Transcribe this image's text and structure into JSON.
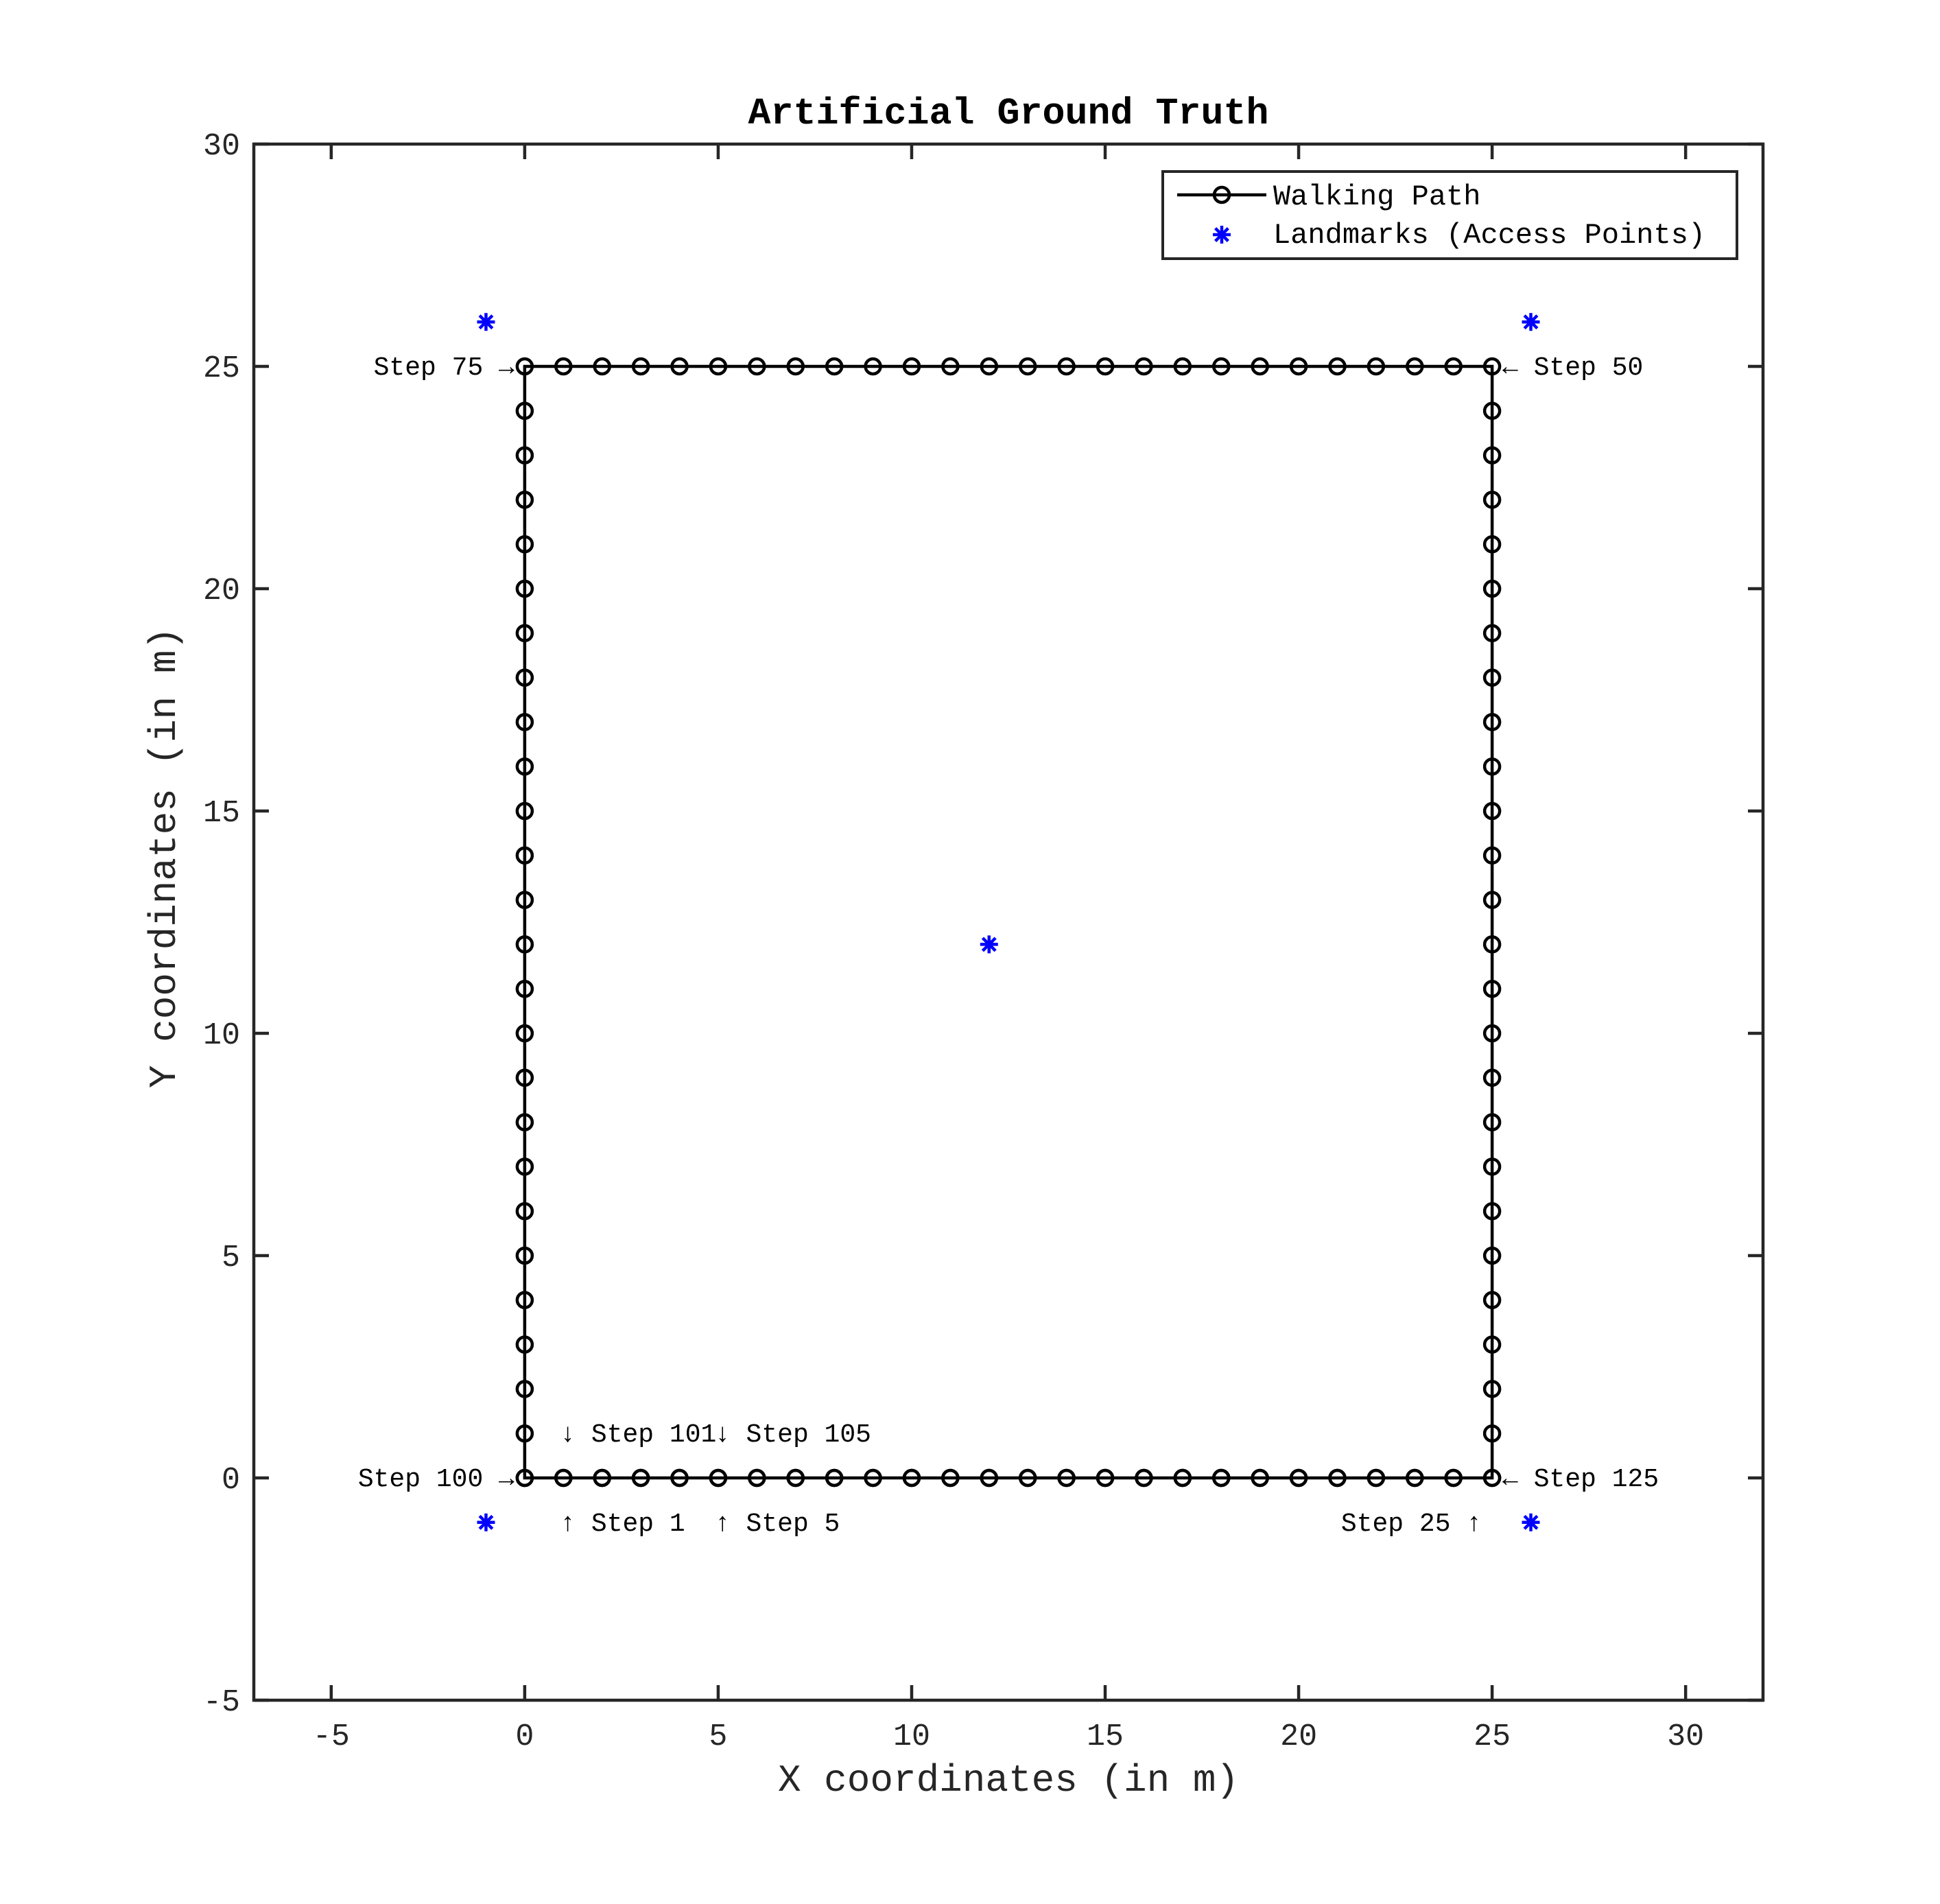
{
  "chart_data": {
    "type": "scatter",
    "title": "Artificial Ground Truth",
    "xlabel": "X coordinates (in m)",
    "ylabel": "Y coordinates (in m)",
    "xlim": [
      -7,
      32
    ],
    "ylim": [
      -5,
      30
    ],
    "xticks": [
      -5,
      0,
      5,
      10,
      15,
      20,
      25,
      30
    ],
    "yticks": [
      -5,
      0,
      5,
      10,
      15,
      20,
      25,
      30
    ],
    "xtick_labels": [
      "-5",
      "0",
      "5",
      "10",
      "15",
      "20",
      "25",
      "30"
    ],
    "ytick_labels": [
      "-5",
      "0",
      "5",
      "10",
      "15",
      "20",
      "25",
      "30"
    ],
    "grid": false,
    "legend_position": "top-right",
    "series": [
      {
        "name": "Walking Path",
        "style": "line-with-circle-markers",
        "color": "#000000",
        "x": [
          0,
          1,
          2,
          3,
          4,
          5,
          6,
          7,
          8,
          9,
          10,
          11,
          12,
          13,
          14,
          15,
          16,
          17,
          18,
          19,
          20,
          21,
          22,
          23,
          24,
          25,
          25,
          25,
          25,
          25,
          25,
          25,
          25,
          25,
          25,
          25,
          25,
          25,
          25,
          25,
          25,
          25,
          25,
          25,
          25,
          25,
          25,
          25,
          25,
          25,
          25,
          24,
          23,
          22,
          21,
          20,
          19,
          18,
          17,
          16,
          15,
          14,
          13,
          12,
          11,
          10,
          9,
          8,
          7,
          6,
          5,
          4,
          3,
          2,
          1,
          0,
          0,
          0,
          0,
          0,
          0,
          0,
          0,
          0,
          0,
          0,
          0,
          0,
          0,
          0,
          0,
          0,
          0,
          0,
          0,
          0,
          0,
          0,
          0,
          0,
          0,
          1,
          2,
          3,
          4,
          5,
          6,
          7,
          8,
          9,
          10,
          11,
          12,
          13,
          14,
          15,
          16,
          17,
          18,
          19,
          20,
          21,
          22,
          23,
          24,
          25
        ],
        "y": [
          0,
          0,
          0,
          0,
          0,
          0,
          0,
          0,
          0,
          0,
          0,
          0,
          0,
          0,
          0,
          0,
          0,
          0,
          0,
          0,
          0,
          0,
          0,
          0,
          0,
          0,
          1,
          2,
          3,
          4,
          5,
          6,
          7,
          8,
          9,
          10,
          11,
          12,
          13,
          14,
          15,
          16,
          17,
          18,
          19,
          20,
          21,
          22,
          23,
          24,
          25,
          25,
          25,
          25,
          25,
          25,
          25,
          25,
          25,
          25,
          25,
          25,
          25,
          25,
          25,
          25,
          25,
          25,
          25,
          25,
          25,
          25,
          25,
          25,
          25,
          25,
          24,
          23,
          22,
          21,
          20,
          19,
          18,
          17,
          16,
          15,
          14,
          13,
          12,
          11,
          10,
          9,
          8,
          7,
          6,
          5,
          4,
          3,
          2,
          1,
          0,
          0,
          0,
          0,
          0,
          0,
          0,
          0,
          0,
          0,
          0,
          0,
          0,
          0,
          0,
          0,
          0,
          0,
          0,
          0,
          0,
          0,
          0,
          0,
          0,
          0
        ]
      },
      {
        "name": "Landmarks (Access Points)",
        "style": "asterisk-markers",
        "color": "#0000FF",
        "x": [
          -1,
          26,
          12,
          -1,
          26
        ],
        "y": [
          26,
          26,
          12,
          -1,
          -1
        ]
      }
    ],
    "annotations": [
      {
        "text": "Step 75 →",
        "x": 0,
        "y": 25,
        "anchor": "end"
      },
      {
        "text": "← Step 50",
        "x": 25,
        "y": 25,
        "anchor": "start"
      },
      {
        "text": "Step 100 →",
        "x": 0,
        "y": 0,
        "anchor": "end"
      },
      {
        "text": "← Step 125",
        "x": 25,
        "y": 0,
        "anchor": "start"
      },
      {
        "text": "↓ Step 101",
        "x": 1,
        "y": 1,
        "anchor": "start"
      },
      {
        "text": "↓ Step 105",
        "x": 5,
        "y": 1,
        "anchor": "start"
      },
      {
        "text": "↑ Step 1",
        "x": 1,
        "y": -1,
        "anchor": "start"
      },
      {
        "text": "↑ Step 5",
        "x": 5,
        "y": -1,
        "anchor": "start"
      },
      {
        "text": "Step 25 ↑",
        "x": 25,
        "y": -1,
        "anchor": "end"
      }
    ]
  }
}
